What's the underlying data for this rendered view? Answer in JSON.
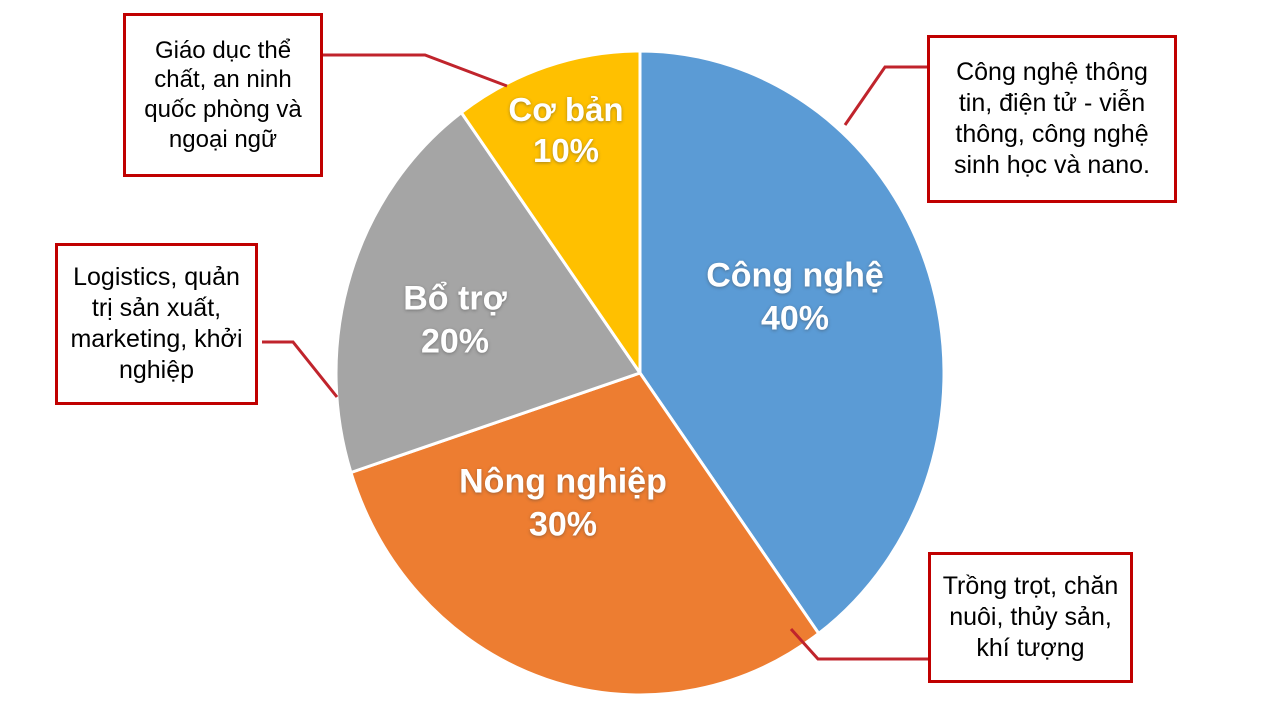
{
  "colors": {
    "background": "#FFFFFF",
    "slice_cong_nghe": "#5B9BD5",
    "slice_nong_nghiep": "#ED7D31",
    "slice_bo_tro": "#A5A5A5",
    "slice_co_ban": "#FFC000",
    "slice_divider": "#FFFFFF",
    "slice_label_text": "#FFFFFF",
    "callout_border": "#C00000",
    "callout_line": "#C0242C",
    "callout_text": "#000000"
  },
  "chart_data": {
    "type": "pie",
    "start_angle_deg": 0,
    "direction": "clockwise",
    "legend": "none",
    "slices": [
      {
        "id": "cong-nghe",
        "label": "Công nghệ",
        "value": 40,
        "pct": "40%",
        "color": "#5B9BD5",
        "annotation": "Công nghệ thông tin, điện tử - viễn thông, công nghệ sinh học và nano."
      },
      {
        "id": "nong-nghiep",
        "label": "Nông nghiệp",
        "value": 30,
        "pct": "30%",
        "color": "#ED7D31",
        "annotation": "Trồng trọt, chăn nuôi, thủy sản, khí tượng"
      },
      {
        "id": "bo-tro",
        "label": "Bổ trợ",
        "value": 20,
        "pct": "20%",
        "color": "#A5A5A5",
        "annotation": "Logistics, quản trị sản xuất, marketing, khởi nghiệp"
      },
      {
        "id": "co-ban",
        "label": "Cơ bản",
        "value": 10,
        "pct": "10%",
        "color": "#FFC000",
        "annotation": "Giáo dục thể chất, an ninh quốc phòng và ngoại ngữ"
      }
    ]
  },
  "callouts": [
    {
      "id": "co-ban",
      "text": "Giáo dục thể chất, an ninh quốc phòng và ngoại ngữ"
    },
    {
      "id": "cong-nghe",
      "text": "Công nghệ thông tin, điện tử - viễn thông, công nghệ sinh học và nano."
    },
    {
      "id": "bo-tro",
      "text": "Logistics, quản trị sản xuất, marketing, khởi nghiệp"
    },
    {
      "id": "nong-nghiep",
      "text": "Trồng trọt, chăn nuôi, thủy sản, khí tượng"
    }
  ]
}
